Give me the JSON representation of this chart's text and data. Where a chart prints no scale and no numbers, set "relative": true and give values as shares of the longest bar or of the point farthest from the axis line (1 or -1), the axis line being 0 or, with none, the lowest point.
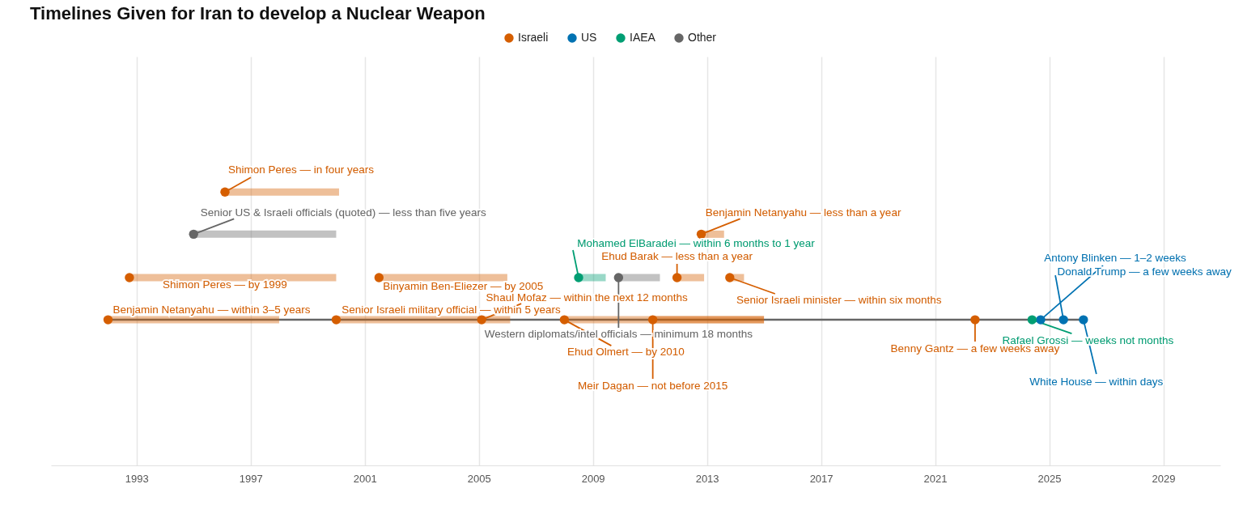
{
  "chart_data": {
    "type": "scatter",
    "title": "Timelines Given for Iran to develop a Nuclear Weapon",
    "relative": true,
    "xlim": [
      1990,
      2031
    ],
    "xticks": [
      1993,
      1997,
      2001,
      2005,
      2009,
      2013,
      2017,
      2021,
      2025,
      2029
    ],
    "grid": "x",
    "legend": "top",
    "marker": "circle",
    "series": [
      {
        "name": "Israeli",
        "color": "#d55e00",
        "x": [
          1992.0,
          1992.75,
          1996.1,
          2000.0,
          2001.5,
          2005.1,
          2008.0,
          2011.1,
          2011.95,
          2012.8,
          2013.8,
          2022.4
        ],
        "values": [
          0,
          0.33,
          1,
          0,
          0.33,
          0,
          0,
          0,
          0.33,
          0.67,
          0.33,
          0
        ],
        "xerrors": [
          [
            1992.0,
            1998.0
          ],
          [
            1992.75,
            2000.0
          ],
          [
            1996.1,
            2000.1
          ],
          [
            2000.0,
            2005.0
          ],
          [
            2001.5,
            2006.0
          ],
          [
            2005.1,
            2006.1
          ],
          [
            2008.0,
            2015.0
          ],
          [
            2011.1,
            2015.0
          ],
          [
            2011.95,
            2012.9
          ],
          [
            2012.8,
            2013.6
          ],
          [
            2013.8,
            2014.3
          ],
          null
        ]
      },
      {
        "name": "US",
        "color": "#0072b2",
        "x": [
          2024.7,
          2025.5,
          2026.2
        ],
        "values": [
          0,
          0,
          0
        ]
      },
      {
        "name": "IAEA",
        "color": "#009e73",
        "x": [
          2008.5,
          2024.4
        ],
        "values": [
          0.33,
          0
        ],
        "xerrors": [
          [
            2008.5,
            2009.45
          ],
          null
        ]
      },
      {
        "name": "Other",
        "color": "#666666",
        "x": [
          1995.0,
          2009.9
        ],
        "values": [
          0.67,
          0.33
        ],
        "xerrors": [
          [
            1995.0,
            2000.0
          ],
          [
            2009.9,
            2011.35
          ]
        ]
      },
      {
        "type": "line",
        "color": "#666666",
        "marker": "none",
        "x": [
          1992.0,
          2026.2
        ],
        "values": [
          0,
          0
        ]
      }
    ],
    "annotations": [
      {
        "text": "Benjamin Netanyahu — within 3–5 years",
        "x": 1992.0,
        "y": 0
      },
      {
        "text": "Shimon Peres — by 1999",
        "x": 1992.75,
        "y": 0.33
      },
      {
        "text": "Shimon Peres — in four years",
        "x": 1996.1,
        "y": 1
      },
      {
        "text": "Senior Israeli military official — within 5 years",
        "x": 2000.0,
        "y": 0
      },
      {
        "text": "Binyamin Ben-Eliezer — by 2005",
        "x": 2001.5,
        "y": 0.33
      },
      {
        "text": "Shaul Mofaz — within the next 12 months",
        "x": 2005.1,
        "y": 0
      },
      {
        "text": "Ehud Olmert — by 2010",
        "x": 2008.0,
        "y": 0
      },
      {
        "text": "Meir Dagan — not before 2015",
        "x": 2011.1,
        "y": 0
      },
      {
        "text": "Ehud Barak — less than a year",
        "x": 2011.95,
        "y": 0.33
      },
      {
        "text": "Benjamin Netanyahu — less than a year",
        "x": 2012.8,
        "y": 0.67
      },
      {
        "text": "Senior Israeli minister — within six months",
        "x": 2013.8,
        "y": 0.33
      },
      {
        "text": "Benny Gantz — a few weeks away",
        "x": 2022.4,
        "y": 0
      },
      {
        "text": "Antony Blinken — 1–2 weeks",
        "x": 2024.7,
        "y": 0
      },
      {
        "text": "Donald Trump — a few weeks away",
        "x": 2025.5,
        "y": 0
      },
      {
        "text": "White House — within days",
        "x": 2026.2,
        "y": 0
      },
      {
        "text": "Mohamed ElBaradei — within 6 months to 1 year",
        "x": 2008.5,
        "y": 0.33
      },
      {
        "text": "Rafael Grossi — weeks not months",
        "x": 2024.4,
        "y": 0
      },
      {
        "text": "Senior US & Israeli officials (quoted) — less than five years",
        "x": 1995.0,
        "y": 0.67
      },
      {
        "text": "Western diplomats/intel officials — minimum 18 months",
        "x": 2009.9,
        "y": 0.33
      }
    ]
  }
}
